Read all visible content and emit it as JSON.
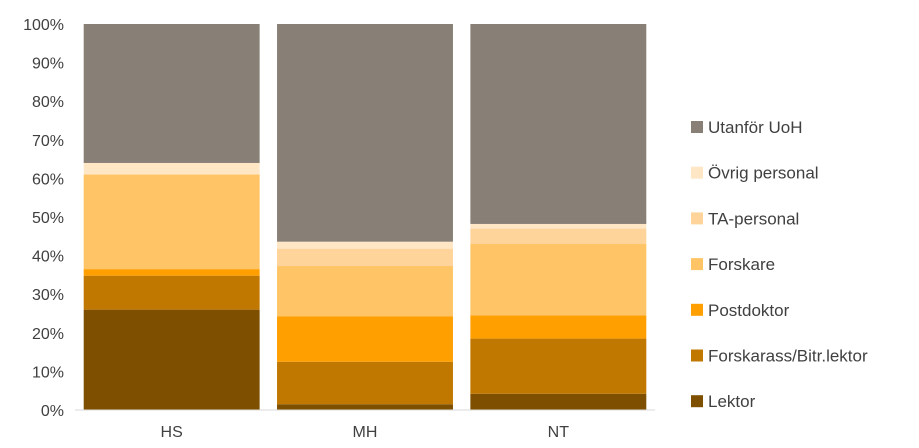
{
  "chart_data": {
    "type": "bar",
    "stacked": true,
    "percent": true,
    "categories": [
      "HS",
      "MH",
      "NT"
    ],
    "ylim": [
      0,
      100
    ],
    "y_ticks": [
      "0%",
      "10%",
      "20%",
      "30%",
      "40%",
      "50%",
      "60%",
      "70%",
      "80%",
      "90%",
      "100%"
    ],
    "grid": false,
    "legend_position": "right",
    "series": [
      {
        "name": "Lektor",
        "color": "#7f4f00",
        "values": [
          26,
          1.5,
          4.2
        ]
      },
      {
        "name": "Forskarass/Bitr.lektor",
        "color": "#c07800",
        "values": [
          8.8,
          11,
          14.3
        ]
      },
      {
        "name": "Postdoktor",
        "color": "#ff9f00",
        "values": [
          1.7,
          11.8,
          6
        ]
      },
      {
        "name": "Forskare",
        "color": "#ffc466",
        "values": [
          24.5,
          13,
          18.5
        ]
      },
      {
        "name": "TA-personal",
        "color": "#ffd49a",
        "values": [
          0,
          4.5,
          4
        ]
      },
      {
        "name": "Övrig personal",
        "color": "#ffe6c5",
        "values": [
          3,
          1.8,
          1.2
        ]
      },
      {
        "name": "Utanför UoH",
        "color": "#888076",
        "values": [
          36,
          56.4,
          51.8
        ]
      }
    ],
    "legend_labels": [
      "Utanför UoH",
      "Övrig personal",
      " TA-personal",
      "Forskare",
      "Postdoktor",
      "Forskarass/Bitr.lektor",
      "Lektor"
    ]
  }
}
